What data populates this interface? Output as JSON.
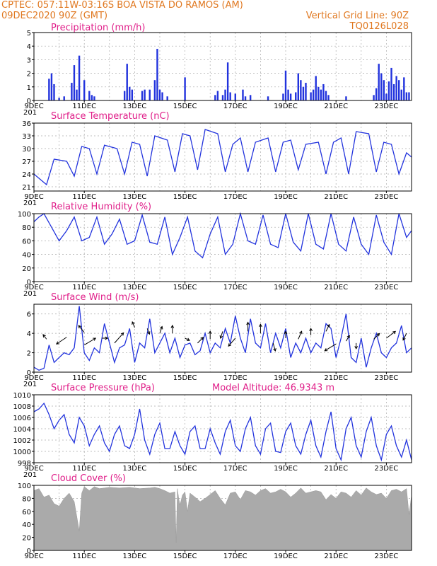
{
  "header": {
    "left_line1": "CPTEC:   057:11W-03:16S   BOA VISTA DO RAMOS (AM)",
    "left_line2": "09DEC2020 90Z (GMT)",
    "right_line2": "Vertical Grid Line: 90Z",
    "right_line3": "TQ0126L028"
  },
  "colors": {
    "header": "#e07820",
    "panel_title": "#e0208a",
    "line": "#2233dd",
    "bar": "#2233dd",
    "cloud": "#aaaaaa",
    "arrow": "#000000"
  },
  "x_axis": {
    "tick_labels": [
      "9DEC",
      "11DEC",
      "13DEC",
      "15DEC",
      "17DEC",
      "19DEC",
      "21DEC",
      "23DEC"
    ],
    "start_day": 9,
    "end_day": 24,
    "cut_label": "201"
  },
  "chart_data": [
    {
      "id": "precip",
      "type": "bar",
      "title": "Precipitation (mm/h)",
      "ylim": [
        0,
        5
      ],
      "yticks": [
        0,
        1,
        2,
        3,
        4,
        5
      ],
      "x": [
        9.6,
        9.7,
        9.8,
        10.0,
        10.2,
        10.5,
        10.6,
        10.7,
        10.8,
        11.0,
        11.2,
        11.3,
        11.4,
        12.6,
        12.7,
        12.8,
        12.9,
        13.3,
        13.4,
        13.6,
        13.8,
        13.9,
        14.0,
        14.1,
        14.3,
        15.0,
        16.2,
        16.3,
        16.5,
        16.6,
        16.7,
        16.8,
        17.0,
        17.3,
        17.4,
        17.6,
        18.3,
        18.9,
        19.0,
        19.1,
        19.2,
        19.4,
        19.5,
        19.6,
        19.7,
        19.8,
        20.0,
        20.1,
        20.2,
        20.3,
        20.4,
        20.5,
        20.6,
        20.7,
        21.4,
        22.5,
        22.6,
        22.7,
        22.8,
        22.9,
        23.0,
        23.1,
        23.2,
        23.3,
        23.4,
        23.5,
        23.6,
        23.7,
        23.8,
        23.9
      ],
      "values": [
        1.6,
        2.0,
        1.2,
        0.2,
        0.3,
        1.3,
        2.6,
        0.8,
        3.3,
        1.5,
        0.7,
        0.4,
        0.3,
        0.7,
        2.7,
        1.0,
        0.8,
        0.7,
        0.8,
        0.8,
        1.5,
        3.8,
        0.8,
        0.6,
        0.3,
        1.7,
        0.4,
        0.7,
        0.4,
        0.8,
        2.8,
        0.6,
        0.5,
        0.8,
        0.3,
        0.4,
        0.3,
        0.5,
        2.2,
        0.8,
        0.5,
        0.6,
        2.0,
        1.5,
        1.0,
        1.3,
        0.6,
        0.8,
        1.8,
        1.0,
        0.8,
        1.2,
        0.7,
        0.4,
        0.3,
        0.4,
        0.9,
        2.7,
        2.0,
        1.5,
        0.5,
        1.4,
        2.4,
        1.2,
        1.8,
        1.5,
        0.8,
        1.7,
        0.6,
        0.6
      ]
    },
    {
      "id": "temp",
      "type": "line",
      "title": "Surface Temperature (nC)",
      "ylim": [
        20,
        36
      ],
      "yticks": [
        21,
        24,
        27,
        30,
        33,
        36
      ],
      "x": [
        9.0,
        9.2,
        9.5,
        9.8,
        10.3,
        10.6,
        10.9,
        11.2,
        11.5,
        11.8,
        12.3,
        12.6,
        12.9,
        13.2,
        13.5,
        13.8,
        14.3,
        14.6,
        14.9,
        15.2,
        15.5,
        15.8,
        16.3,
        16.6,
        16.9,
        17.2,
        17.5,
        17.8,
        18.3,
        18.6,
        18.9,
        19.2,
        19.5,
        19.8,
        20.3,
        20.6,
        20.9,
        21.2,
        21.5,
        21.8,
        22.3,
        22.6,
        22.9,
        23.2,
        23.5,
        23.8,
        24.0
      ],
      "values": [
        24.0,
        23.0,
        21.5,
        27.5,
        27.0,
        23.5,
        30.5,
        30.0,
        24.0,
        30.8,
        30.0,
        24.0,
        31.5,
        31.0,
        23.5,
        33.0,
        32.0,
        24.5,
        33.5,
        33.0,
        25.0,
        34.5,
        33.5,
        24.5,
        31.0,
        32.5,
        24.5,
        31.5,
        32.5,
        24.5,
        31.5,
        32.0,
        25.0,
        31.0,
        31.5,
        24.0,
        31.5,
        32.5,
        24.0,
        34.0,
        33.5,
        24.5,
        31.5,
        31.0,
        24.0,
        29.0,
        28.0
      ]
    },
    {
      "id": "rh",
      "type": "line",
      "title": "Relative Humidity (%)",
      "ylim": [
        0,
        100
      ],
      "yticks": [
        0,
        20,
        40,
        60,
        80,
        100
      ],
      "x": [
        9.0,
        9.2,
        9.4,
        9.7,
        10.0,
        10.3,
        10.6,
        10.9,
        11.2,
        11.5,
        11.8,
        12.1,
        12.4,
        12.7,
        13.0,
        13.3,
        13.6,
        13.9,
        14.2,
        14.5,
        14.8,
        15.1,
        15.4,
        15.7,
        16.0,
        16.3,
        16.6,
        16.9,
        17.2,
        17.5,
        17.8,
        18.1,
        18.4,
        18.7,
        19.0,
        19.3,
        19.6,
        19.9,
        20.2,
        20.5,
        20.8,
        21.1,
        21.4,
        21.7,
        22.0,
        22.3,
        22.6,
        22.9,
        23.2,
        23.5,
        23.8,
        24.0
      ],
      "values": [
        88,
        95,
        100,
        80,
        60,
        75,
        95,
        60,
        65,
        95,
        55,
        70,
        92,
        55,
        60,
        98,
        58,
        55,
        95,
        40,
        65,
        95,
        45,
        35,
        70,
        95,
        40,
        55,
        100,
        60,
        55,
        98,
        55,
        50,
        100,
        58,
        45,
        100,
        55,
        48,
        100,
        55,
        45,
        95,
        55,
        40,
        98,
        58,
        40,
        100,
        65,
        75
      ]
    },
    {
      "id": "wind",
      "type": "line",
      "title": "Surface Wind (m/s)",
      "ylim": [
        0,
        7
      ],
      "yticks": [
        0,
        2,
        4,
        6
      ],
      "x": [
        9.0,
        9.2,
        9.4,
        9.6,
        9.8,
        10.0,
        10.2,
        10.4,
        10.6,
        10.8,
        11.0,
        11.2,
        11.4,
        11.6,
        11.8,
        12.0,
        12.2,
        12.4,
        12.6,
        12.8,
        13.0,
        13.2,
        13.4,
        13.6,
        13.8,
        14.0,
        14.2,
        14.4,
        14.6,
        14.8,
        15.0,
        15.2,
        15.4,
        15.6,
        15.8,
        16.0,
        16.2,
        16.4,
        16.6,
        16.8,
        17.0,
        17.2,
        17.4,
        17.6,
        17.8,
        18.0,
        18.2,
        18.4,
        18.6,
        18.8,
        19.0,
        19.2,
        19.4,
        19.6,
        19.8,
        20.0,
        20.2,
        20.4,
        20.6,
        20.8,
        21.0,
        21.2,
        21.4,
        21.6,
        21.8,
        22.0,
        22.2,
        22.4,
        22.6,
        22.8,
        23.0,
        23.2,
        23.4,
        23.6,
        23.8,
        24.0
      ],
      "values": [
        0.5,
        0.2,
        0.4,
        2.8,
        1.0,
        1.5,
        2.0,
        1.8,
        2.5,
        6.8,
        2.0,
        1.2,
        2.5,
        2.0,
        5.0,
        3.0,
        1.0,
        2.5,
        2.8,
        4.5,
        1.0,
        3.0,
        2.5,
        5.5,
        2.0,
        3.0,
        4.0,
        2.0,
        3.5,
        1.5,
        2.8,
        3.0,
        1.8,
        2.2,
        4.0,
        2.0,
        3.0,
        2.5,
        4.5,
        3.0,
        5.8,
        3.5,
        2.0,
        5.5,
        3.0,
        2.5,
        5.0,
        2.0,
        4.0,
        2.5,
        4.5,
        1.5,
        3.0,
        2.0,
        3.5,
        2.0,
        3.0,
        2.5,
        5.0,
        4.5,
        1.5,
        3.5,
        6.0,
        1.5,
        1.0,
        3.5,
        0.5,
        2.5,
        4.0,
        2.0,
        1.5,
        2.5,
        3.0,
        4.8,
        2.0,
        2.5
      ],
      "arrows": [
        {
          "day": 9.5,
          "level": 3.4,
          "dx": -0.3,
          "dy": 0.4
        },
        {
          "day": 10.3,
          "level": 3.6,
          "dx": -0.9,
          "dy": -0.6
        },
        {
          "day": 11.0,
          "level": 2.8,
          "dx": 1.0,
          "dy": 0.6
        },
        {
          "day": 11.0,
          "level": 4.1,
          "dx": -0.5,
          "dy": 0.6
        },
        {
          "day": 11.7,
          "level": 3.5,
          "dx": 0.5,
          "dy": 0.0
        },
        {
          "day": 12.2,
          "level": 3.0,
          "dx": 0.8,
          "dy": 0.9
        },
        {
          "day": 13.0,
          "level": 4.6,
          "dx": -0.2,
          "dy": 0.5
        },
        {
          "day": 13.5,
          "level": 4.5,
          "dx": 0.2,
          "dy": -0.5
        },
        {
          "day": 14.0,
          "level": 4.0,
          "dx": 0.2,
          "dy": 0.6
        },
        {
          "day": 14.5,
          "level": 4.0,
          "dx": 0.0,
          "dy": 0.7
        },
        {
          "day": 15.0,
          "level": 3.5,
          "dx": 0.4,
          "dy": -0.2
        },
        {
          "day": 15.5,
          "level": 3.0,
          "dx": 0.5,
          "dy": 0.5
        },
        {
          "day": 16.0,
          "level": 3.4,
          "dx": 0.0,
          "dy": 0.7
        },
        {
          "day": 16.5,
          "level": 4.2,
          "dx": -0.2,
          "dy": -0.6
        },
        {
          "day": 17.0,
          "level": 3.5,
          "dx": -0.6,
          "dy": -0.7
        },
        {
          "day": 17.5,
          "level": 4.2,
          "dx": 0.0,
          "dy": 0.8
        },
        {
          "day": 18.0,
          "level": 4.0,
          "dx": 0.0,
          "dy": 0.8
        },
        {
          "day": 18.5,
          "level": 3.0,
          "dx": 0.2,
          "dy": -0.7
        },
        {
          "day": 19.0,
          "level": 3.5,
          "dx": 0.0,
          "dy": 0.6
        },
        {
          "day": 19.5,
          "level": 3.4,
          "dx": 0.3,
          "dy": 0.7
        },
        {
          "day": 20.0,
          "level": 3.8,
          "dx": 0.0,
          "dy": 0.6
        },
        {
          "day": 20.6,
          "level": 4.2,
          "dx": 0.3,
          "dy": 0.6
        },
        {
          "day": 21.0,
          "level": 2.9,
          "dx": -1.0,
          "dy": -0.6
        },
        {
          "day": 21.4,
          "level": 3.2,
          "dx": 0.3,
          "dy": 0.5
        },
        {
          "day": 21.8,
          "level": 3.0,
          "dx": 0.0,
          "dy": -0.5
        },
        {
          "day": 22.5,
          "level": 3.4,
          "dx": 0.5,
          "dy": 0.5
        },
        {
          "day": 23.0,
          "level": 3.5,
          "dx": 0.8,
          "dy": 0.6
        },
        {
          "day": 23.8,
          "level": 4.0,
          "dx": -0.3,
          "dy": -0.6
        }
      ]
    },
    {
      "id": "pressure",
      "type": "line",
      "title": "Surface Pressure (hPa)",
      "annotation": "Model Altitude: 46.9343 m",
      "ylim": [
        998,
        1010
      ],
      "yticks": [
        998,
        1000,
        1002,
        1004,
        1006,
        1008,
        1010
      ],
      "x": [
        9.0,
        9.2,
        9.4,
        9.6,
        9.8,
        10.0,
        10.2,
        10.4,
        10.6,
        10.8,
        11.0,
        11.2,
        11.4,
        11.6,
        11.8,
        12.0,
        12.2,
        12.4,
        12.6,
        12.8,
        13.0,
        13.2,
        13.4,
        13.6,
        13.8,
        14.0,
        14.2,
        14.4,
        14.6,
        14.8,
        15.0,
        15.2,
        15.4,
        15.6,
        15.8,
        16.0,
        16.2,
        16.4,
        16.6,
        16.8,
        17.0,
        17.2,
        17.4,
        17.6,
        17.8,
        18.0,
        18.2,
        18.4,
        18.6,
        18.8,
        19.0,
        19.2,
        19.4,
        19.6,
        19.8,
        20.0,
        20.2,
        20.4,
        20.6,
        20.8,
        21.0,
        21.2,
        21.4,
        21.6,
        21.8,
        22.0,
        22.2,
        22.4,
        22.6,
        22.8,
        23.0,
        23.2,
        23.4,
        23.6,
        23.8,
        24.0
      ],
      "values": [
        1007.0,
        1007.5,
        1008.5,
        1006.5,
        1004.0,
        1005.5,
        1006.5,
        1003.0,
        1001.5,
        1006.0,
        1004.5,
        1001.0,
        1003.0,
        1004.5,
        1001.5,
        1000.0,
        1003.0,
        1004.5,
        1001.0,
        1000.5,
        1003.0,
        1007.5,
        1002.0,
        999.5,
        1003.0,
        1005.0,
        1000.5,
        1000.5,
        1003.5,
        1001.0,
        999.5,
        1003.5,
        1004.5,
        1000.5,
        1000.5,
        1004.0,
        1001.5,
        999.5,
        1003.5,
        1005.5,
        1001.0,
        1000.0,
        1004.0,
        1006.0,
        1001.0,
        999.5,
        1004.0,
        1005.0,
        1000.0,
        999.8,
        1003.5,
        1005.0,
        1001.0,
        999.5,
        1003.0,
        1005.5,
        1001.0,
        999.0,
        1003.5,
        1007.0,
        1000.5,
        998.5,
        1004.0,
        1006.0,
        1001.0,
        999.0,
        1003.5,
        1006.0,
        1001.0,
        998.5,
        1003.0,
        1004.5,
        1001.0,
        999.0,
        1002.0,
        998.5
      ]
    },
    {
      "id": "cloud",
      "type": "area",
      "title": "Cloud Cover (%)",
      "ylim": [
        0,
        100
      ],
      "yticks": [
        0,
        20,
        40,
        60,
        80,
        100
      ],
      "x": [
        9.0,
        9.2,
        9.4,
        9.6,
        9.8,
        10.0,
        10.2,
        10.4,
        10.6,
        10.8,
        10.9,
        11.0,
        11.2,
        11.4,
        11.6,
        11.8,
        12.0,
        12.4,
        12.8,
        13.2,
        13.6,
        13.8,
        14.0,
        14.2,
        14.4,
        14.6,
        14.65,
        14.7,
        14.75,
        14.8,
        14.9,
        15.0,
        15.1,
        15.2,
        15.4,
        15.6,
        15.8,
        16.0,
        16.2,
        16.4,
        16.6,
        16.8,
        17.0,
        17.2,
        17.4,
        17.6,
        17.8,
        18.0,
        18.2,
        18.4,
        18.6,
        18.8,
        19.0,
        19.2,
        19.4,
        19.6,
        19.8,
        20.0,
        20.2,
        20.4,
        20.6,
        20.8,
        21.0,
        21.2,
        21.4,
        21.6,
        21.8,
        22.0,
        22.2,
        22.4,
        22.6,
        22.8,
        23.0,
        23.2,
        23.4,
        23.6,
        23.8,
        23.9,
        24.0
      ],
      "values": [
        92,
        95,
        82,
        85,
        72,
        68,
        80,
        88,
        75,
        30,
        88,
        98,
        92,
        98,
        95,
        96,
        97,
        96,
        97,
        95,
        96,
        97,
        95,
        92,
        88,
        90,
        12,
        95,
        80,
        70,
        85,
        90,
        60,
        88,
        82,
        75,
        80,
        86,
        92,
        80,
        70,
        88,
        90,
        78,
        92,
        90,
        85,
        92,
        95,
        88,
        90,
        94,
        90,
        82,
        88,
        96,
        88,
        90,
        92,
        90,
        78,
        86,
        80,
        90,
        88,
        82,
        92,
        85,
        96,
        90,
        86,
        88,
        80,
        92,
        94,
        90,
        95,
        55,
        85
      ]
    }
  ]
}
